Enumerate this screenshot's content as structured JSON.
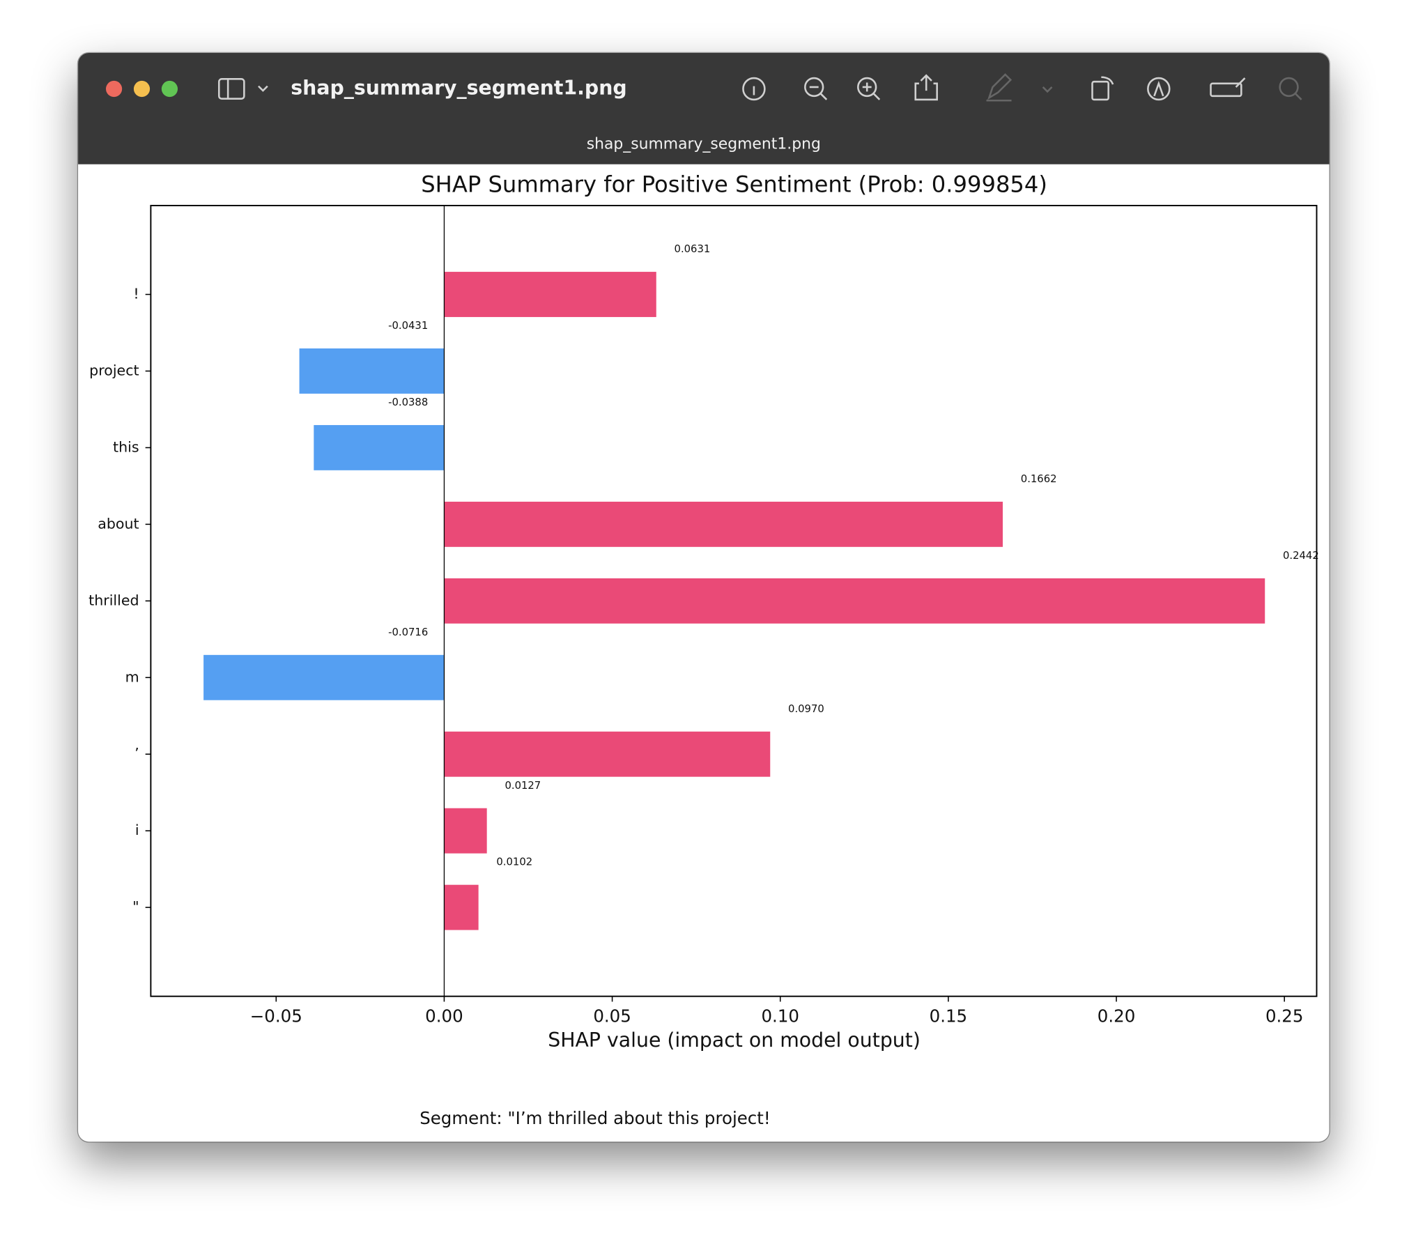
{
  "window": {
    "title": "shap_summary_segment1.png",
    "tab_title": "shap_summary_segment1.png"
  },
  "chart_data": {
    "type": "barh",
    "title": "SHAP Summary for Positive Sentiment (Prob: 0.999854)",
    "xlabel": "SHAP value (impact on model output)",
    "footnote": "Segment: \"I’m thrilled about this project!",
    "categories": [
      "!",
      "project",
      "this",
      "about",
      "thrilled",
      "m",
      "’",
      "i",
      "\""
    ],
    "values": [
      0.0631,
      -0.0431,
      -0.0388,
      0.1662,
      0.2442,
      -0.0716,
      0.097,
      0.0127,
      0.0102
    ],
    "value_labels": [
      "0.0631",
      "-0.0431",
      "-0.0388",
      "0.1662",
      "0.2442",
      "-0.0716",
      "0.0970",
      "0.0127",
      "0.0102"
    ],
    "positive_color": "#ea4a77",
    "negative_color": "#559ff2",
    "xlim": [
      -0.0873,
      0.2596
    ],
    "xticks": [
      {
        "value": -0.05,
        "label": "−0.05"
      },
      {
        "value": 0,
        "label": "0.00"
      },
      {
        "value": 0.05,
        "label": "0.05"
      },
      {
        "value": 0.1,
        "label": "0.10"
      },
      {
        "value": 0.15,
        "label": "0.15"
      },
      {
        "value": 0.2,
        "label": "0.20"
      },
      {
        "value": 0.25,
        "label": "0.25"
      }
    ]
  }
}
